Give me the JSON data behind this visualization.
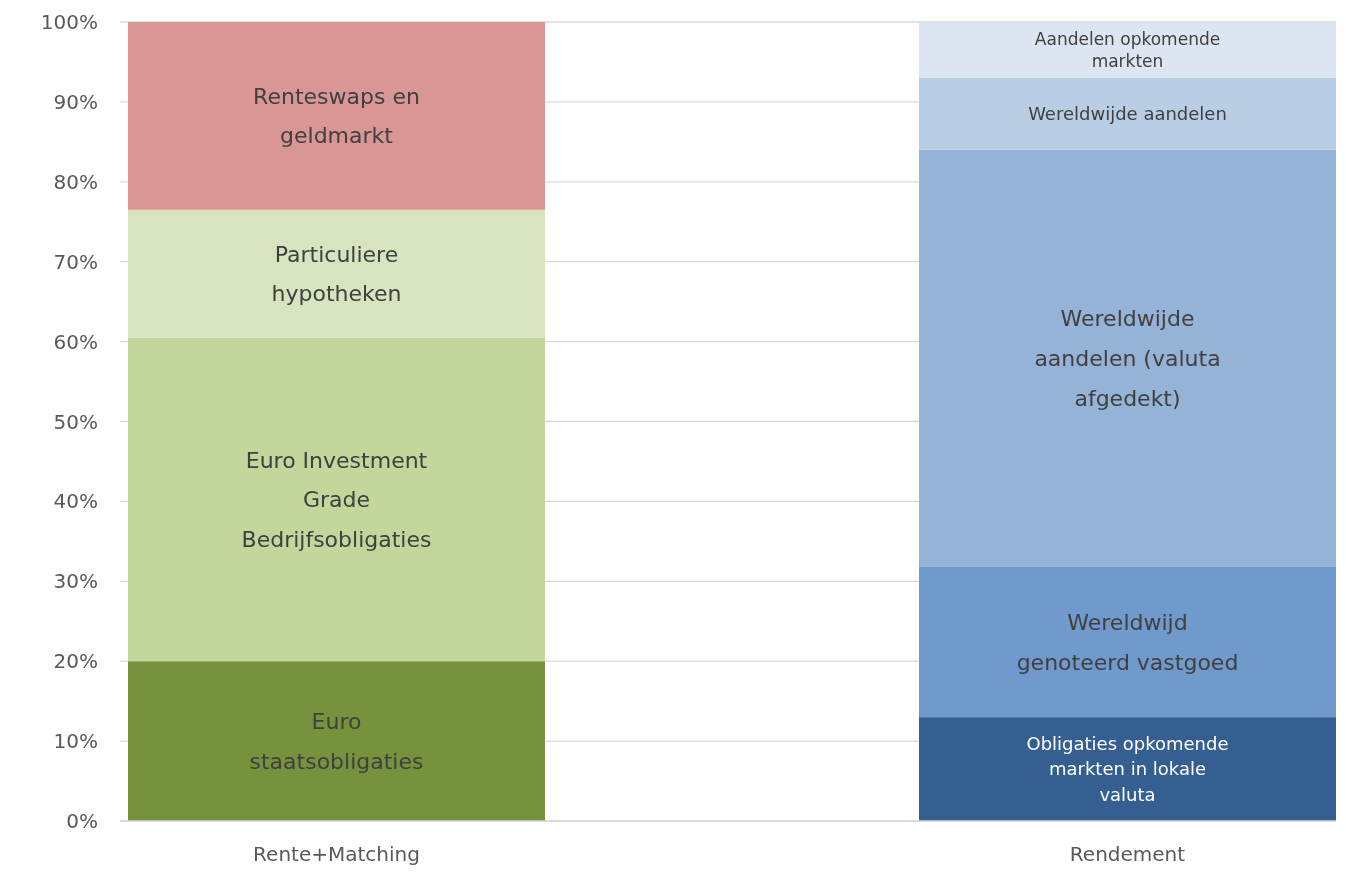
{
  "chart_data": {
    "type": "bar",
    "stacked": true,
    "categories": [
      "Rente+Matching",
      "Rendement"
    ],
    "series": [
      {
        "name": "Euro staatsobligaties",
        "color": "#77923c",
        "values": [
          20,
          null
        ]
      },
      {
        "name": "Euro Investment Grade Bedrijfsobligaties",
        "color": "#c3d69b",
        "values": [
          40.5,
          null
        ]
      },
      {
        "name": "Particuliere hypotheken",
        "color": "#d7e4bd",
        "values": [
          16,
          null
        ]
      },
      {
        "name": "Renteswaps en geldmarkt",
        "color": "#da9694",
        "values": [
          23.5,
          null
        ]
      },
      {
        "name": "Obligaties opkomende markten in lokale valuta",
        "color": "#355f91",
        "values": [
          null,
          13
        ]
      },
      {
        "name": "Wereldwijd genoteerd vastgoed",
        "color": "#7099cc",
        "values": [
          null,
          18.8
        ]
      },
      {
        "name": "Wereldwijde aandelen (valuta afgedekt)",
        "color": "#95b3d7",
        "values": [
          null,
          52.2
        ]
      },
      {
        "name": "Wereldwijde aandelen",
        "color": "#b9cde5",
        "values": [
          null,
          9
        ]
      },
      {
        "name": "Aandelen opkomende markten",
        "color": "#dce6f2",
        "values": [
          null,
          7
        ]
      }
    ],
    "ylim": [
      0,
      100
    ],
    "yticks": [
      {
        "value": 0,
        "label": "0%"
      },
      {
        "value": 10,
        "label": "10%"
      },
      {
        "value": 20,
        "label": "20%"
      },
      {
        "value": 30,
        "label": "30%"
      },
      {
        "value": 40,
        "label": "40%"
      },
      {
        "value": 50,
        "label": "50%"
      },
      {
        "value": 60,
        "label": "60%"
      },
      {
        "value": 70,
        "label": "70%"
      },
      {
        "value": 80,
        "label": "80%"
      },
      {
        "value": 90,
        "label": "90%"
      },
      {
        "value": 100,
        "label": "100%"
      }
    ],
    "grid": "y"
  }
}
